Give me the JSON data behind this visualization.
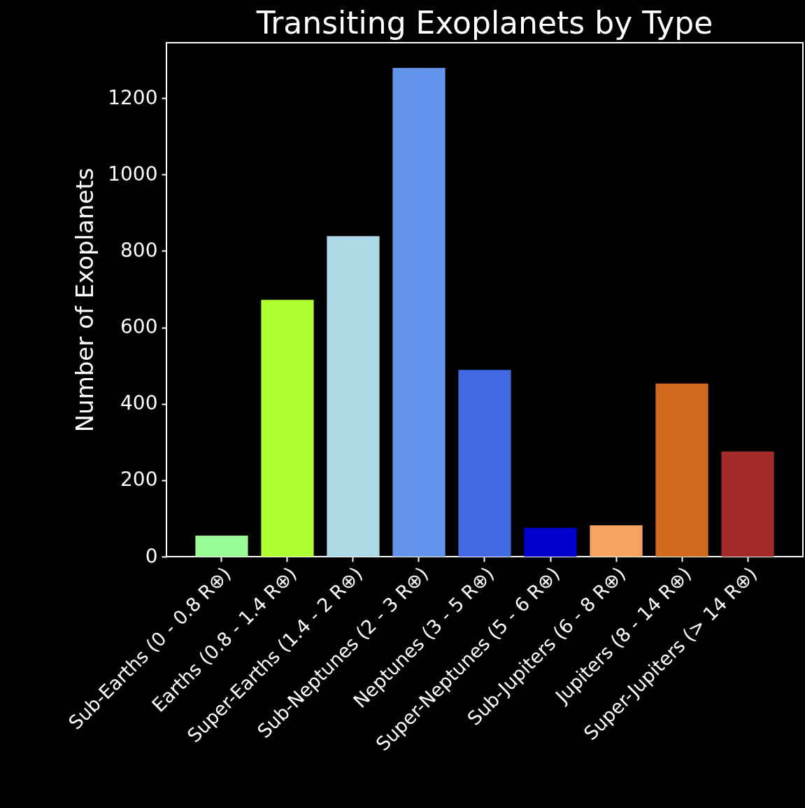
{
  "chart_data": {
    "type": "bar",
    "title": "Transiting Exoplanets by Type",
    "ylabel": "Number of Exoplanets",
    "categories": [
      "Sub-Earths (0 - 0.8 R⊕)",
      "Earths (0.8 - 1.4 R⊕)",
      "Super-Earths (1.4 - 2 R⊕)",
      "Sub-Neptunes (2 - 3 R⊕)",
      "Neptunes (3 - 5 R⊕)",
      "Super-Neptunes (5 - 6 R⊕)",
      "Sub-Jupiters (6 - 8 R⊕)",
      "Jupiters (8 - 14 R⊕)",
      "Super-Jupiters (> 14 R⊕)"
    ],
    "values": [
      55,
      672,
      839,
      1279,
      489,
      75,
      82,
      453,
      275
    ],
    "colors": [
      "#98fb98",
      "#adff2f",
      "#add8e6",
      "#6495ed",
      "#4169e1",
      "#0000cd",
      "#f4a460",
      "#d2691e",
      "#a52a2a"
    ],
    "ylim": [
      0,
      1345
    ],
    "yticks": [
      0,
      200,
      400,
      600,
      800,
      1000,
      1200
    ],
    "grid": false,
    "legend": false
  }
}
